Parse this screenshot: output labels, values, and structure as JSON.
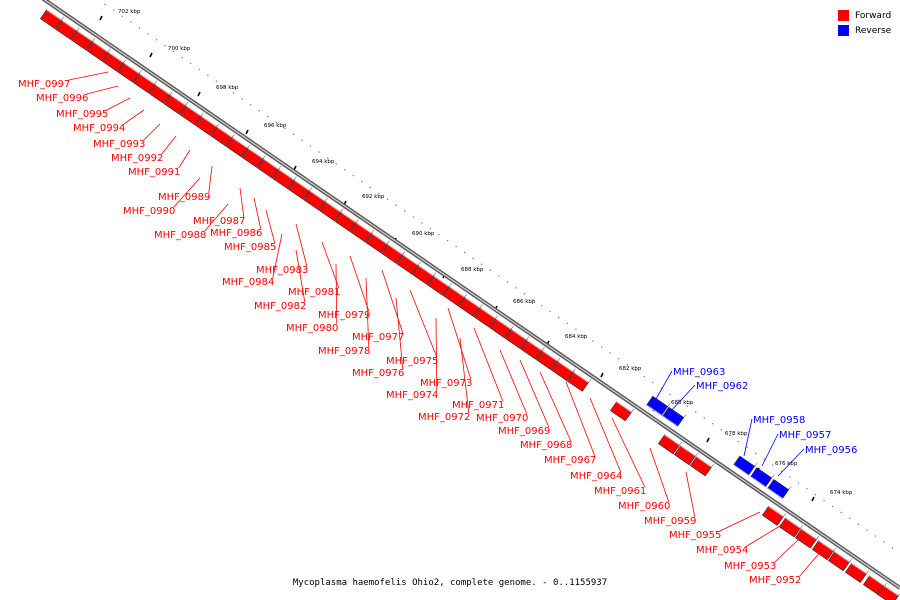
{
  "colors": {
    "forward": "#ff0000",
    "reverse": "#0000ff",
    "backbone": "#808080"
  },
  "legend": [
    {
      "label": "Forward",
      "color": "#ff0000"
    },
    {
      "label": "Reverse",
      "color": "#0000ff"
    }
  ],
  "caption": "Mycoplasma haemofelis Ohio2, complete genome. - 0..1155937",
  "scale": {
    "unit": "kbp",
    "tick_labels": [
      "702 kbp",
      "700 kbp",
      "698 kbp",
      "696 kbp",
      "694 kbp",
      "692 kbp",
      "690 kbp",
      "688 kbp",
      "686 kbp",
      "684 kbp",
      "682 kbp",
      "680 kbp",
      "678 kbp",
      "676 kbp",
      "674 kbp"
    ]
  },
  "genes_reverse": [
    "MHF_0963",
    "MHF_0962",
    "MHF_0958",
    "MHF_0957",
    "MHF_0956"
  ],
  "genes_forward": [
    "MHF_0997",
    "MHF_0996",
    "MHF_0995",
    "MHF_0994",
    "MHF_0993",
    "MHF_0992",
    "MHF_0991",
    "MHF_0989",
    "MHF_0990",
    "MHF_0987",
    "MHF_0986",
    "MHF_0988",
    "MHF_0985",
    "MHF_0983",
    "MHF_0984",
    "MHF_0981",
    "MHF_0982",
    "MHF_0979",
    "MHF_0980",
    "MHF_0977",
    "MHF_0978",
    "MHF_0975",
    "MHF_0976",
    "MHF_0973",
    "MHF_0974",
    "MHF_0971",
    "MHF_0972",
    "MHF_0970",
    "MHF_0969",
    "MHF_0968",
    "MHF_0967",
    "MHF_0964",
    "MHF_0961",
    "MHF_0960",
    "MHF_0959",
    "MHF_0955",
    "MHF_0954",
    "MHF_0953",
    "MHF_0952"
  ]
}
